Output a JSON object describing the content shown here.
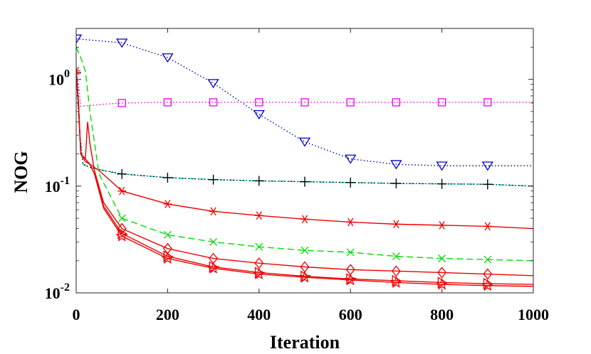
{
  "chart_data": {
    "type": "line",
    "title": "",
    "xlabel": "Iteration",
    "ylabel": "NOG",
    "xlim": [
      0,
      1000
    ],
    "ylim": [
      0.01,
      3.0
    ],
    "yscale": "log",
    "grid": false,
    "legend": "none",
    "x_ticks": [
      0,
      200,
      400,
      600,
      800,
      1000
    ],
    "x_tick_labels": [
      "0",
      "200",
      "400",
      "600",
      "800",
      "1000"
    ],
    "y_ticks": [
      0.01,
      0.1,
      1
    ],
    "y_tick_labels": [
      {
        "base": "10",
        "exp": "-2"
      },
      {
        "base": "10",
        "exp": "-1"
      },
      {
        "base": "10",
        "exp": "0"
      }
    ],
    "series": [
      {
        "name": "blue-triangle",
        "color": "#0000cc",
        "style": "dotted",
        "marker": "triangle-down",
        "x": [
          0,
          100,
          200,
          300,
          400,
          500,
          600,
          700,
          800,
          900,
          1000
        ],
        "values": [
          2.4,
          2.2,
          1.6,
          0.92,
          0.47,
          0.26,
          0.18,
          0.16,
          0.155,
          0.155,
          0.155
        ],
        "marker_x": [
          0,
          100,
          200,
          300,
          400,
          500,
          600,
          700,
          800,
          900
        ]
      },
      {
        "name": "magenta-square",
        "color": "#ee00ee",
        "style": "dotted",
        "marker": "square",
        "x": [
          0,
          5,
          10,
          30,
          60,
          100,
          200,
          300,
          400,
          500,
          600,
          700,
          800,
          900,
          1000
        ],
        "values": [
          1.2,
          0.9,
          0.56,
          0.57,
          0.585,
          0.6,
          0.61,
          0.61,
          0.61,
          0.61,
          0.61,
          0.61,
          0.61,
          0.61,
          0.61
        ],
        "marker_x": [
          100,
          200,
          300,
          400,
          500,
          600,
          700,
          800,
          900
        ]
      },
      {
        "name": "cyan-plus",
        "color": "#00cccc",
        "style": "dashed",
        "marker": "plus",
        "x": [
          0,
          8,
          15,
          30,
          60,
          100,
          200,
          300,
          400,
          500,
          600,
          700,
          800,
          900,
          1000
        ],
        "values": [
          1.15,
          0.3,
          0.16,
          0.15,
          0.14,
          0.13,
          0.12,
          0.115,
          0.112,
          0.11,
          0.108,
          0.106,
          0.105,
          0.104,
          0.1
        ],
        "marker_x": [
          100,
          200,
          300,
          400,
          500,
          600,
          700,
          800,
          900
        ]
      },
      {
        "name": "black-plus",
        "color": "#000000",
        "style": "dotted",
        "marker": "plus",
        "x": [
          0,
          8,
          15,
          30,
          60,
          100,
          200,
          300,
          400,
          500,
          600,
          700,
          800,
          900,
          1000
        ],
        "values": [
          1.15,
          0.3,
          0.16,
          0.15,
          0.14,
          0.13,
          0.12,
          0.115,
          0.112,
          0.11,
          0.108,
          0.106,
          0.105,
          0.104,
          0.1
        ],
        "marker_x": [
          0,
          100,
          200,
          300,
          400,
          500,
          600,
          700,
          800,
          900
        ]
      },
      {
        "name": "red-asterisk",
        "color": "#ee0000",
        "style": "solid",
        "marker": "asterisk",
        "x": [
          0,
          5,
          10,
          20,
          30,
          50,
          100,
          200,
          300,
          400,
          500,
          600,
          700,
          800,
          900,
          1000
        ],
        "values": [
          1.2,
          0.6,
          0.2,
          0.17,
          0.16,
          0.14,
          0.09,
          0.068,
          0.058,
          0.053,
          0.049,
          0.046,
          0.044,
          0.043,
          0.042,
          0.04
        ],
        "marker_x": [
          0,
          100,
          200,
          300,
          400,
          500,
          600,
          700,
          800,
          900
        ]
      },
      {
        "name": "green-x",
        "color": "#00dd00",
        "style": "dashed",
        "marker": "x",
        "x": [
          0,
          5,
          10,
          20,
          30,
          50,
          100,
          200,
          300,
          400,
          500,
          600,
          700,
          800,
          900,
          1000
        ],
        "values": [
          2.0,
          1.8,
          1.6,
          1.2,
          0.5,
          0.13,
          0.05,
          0.035,
          0.03,
          0.027,
          0.025,
          0.024,
          0.022,
          0.021,
          0.0205,
          0.02
        ],
        "marker_x": [
          100,
          200,
          300,
          400,
          500,
          600,
          700,
          800,
          900
        ]
      },
      {
        "name": "red-diamond",
        "color": "#ee0000",
        "style": "solid",
        "marker": "diamond",
        "x": [
          0,
          5,
          10,
          20,
          25,
          30,
          40,
          60,
          100,
          200,
          300,
          400,
          500,
          600,
          700,
          800,
          900,
          1000
        ],
        "values": [
          1.2,
          0.6,
          0.2,
          0.18,
          0.4,
          0.25,
          0.14,
          0.07,
          0.04,
          0.026,
          0.021,
          0.019,
          0.0175,
          0.0165,
          0.016,
          0.0155,
          0.015,
          0.0145
        ],
        "marker_x": [
          100,
          200,
          300,
          400,
          500,
          600,
          700,
          800,
          900
        ]
      },
      {
        "name": "red-triangle-right",
        "color": "#ee0000",
        "style": "solid",
        "marker": "triangle-right",
        "x": [
          0,
          5,
          10,
          20,
          30,
          40,
          60,
          100,
          200,
          300,
          400,
          500,
          600,
          700,
          800,
          900,
          1000
        ],
        "values": [
          1.2,
          0.6,
          0.2,
          0.18,
          0.16,
          0.13,
          0.065,
          0.036,
          0.022,
          0.0175,
          0.0155,
          0.0143,
          0.0135,
          0.013,
          0.0125,
          0.0122,
          0.012
        ],
        "marker_x": [
          100,
          200,
          300,
          400,
          500,
          600,
          700,
          800,
          900
        ]
      },
      {
        "name": "red-star",
        "color": "#ee0000",
        "style": "solid",
        "marker": "star",
        "x": [
          0,
          5,
          10,
          20,
          30,
          40,
          60,
          100,
          200,
          300,
          400,
          500,
          600,
          700,
          800,
          900,
          1000
        ],
        "values": [
          1.2,
          0.6,
          0.2,
          0.18,
          0.16,
          0.13,
          0.062,
          0.034,
          0.021,
          0.017,
          0.015,
          0.014,
          0.0132,
          0.0125,
          0.012,
          0.0117,
          0.0115
        ],
        "marker_x": [
          100,
          200,
          300,
          400,
          500,
          600,
          700,
          800,
          900
        ]
      }
    ]
  }
}
